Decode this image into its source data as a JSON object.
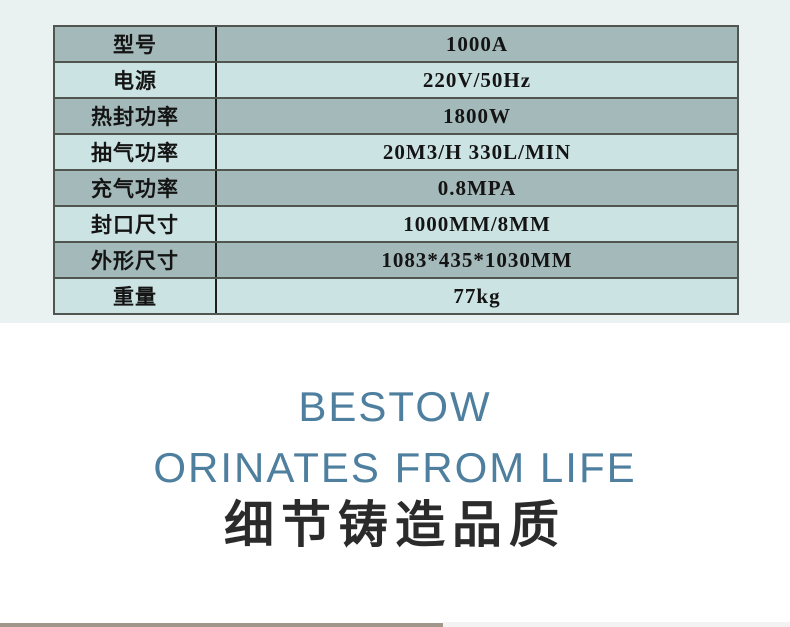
{
  "page": {
    "background_top_color": "#e9f2f1",
    "background_bottom_color": "#ffffff"
  },
  "spec_table": {
    "rows": [
      {
        "label": "型号",
        "value": "1000A"
      },
      {
        "label": "电源",
        "value": "220V/50Hz"
      },
      {
        "label": "热封功率",
        "value": "1800W"
      },
      {
        "label": "抽气功率",
        "value": "20M3/H 330L/MIN"
      },
      {
        "label": "充气功率",
        "value": "0.8MPA"
      },
      {
        "label": "封口尺寸",
        "value": "1000MM/8MM"
      },
      {
        "label": "外形尺寸",
        "value": "1083*435*1030MM"
      },
      {
        "label": "重量",
        "value": "77kg"
      }
    ],
    "row_color_dark": "#a4b9b9",
    "row_color_light": "#cbe3e2",
    "border_color": "#50564f",
    "divider_color": "#1d1d1d"
  },
  "slogan": {
    "line1": "BESTOW",
    "line2": "ORINATES FROM LIFE",
    "line3": "细节铸造品质",
    "en_color": "#4e7f9e",
    "cn_color": "#2b2b2b"
  },
  "footer": {
    "left_bar_color": "#a1968a",
    "right_bar_color": "#f3f3f4"
  }
}
